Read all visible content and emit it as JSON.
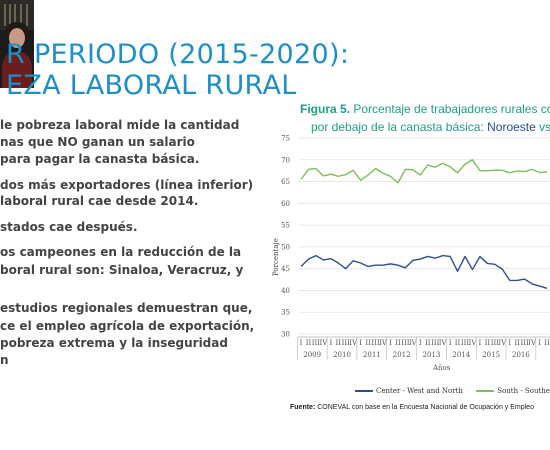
{
  "slide": {
    "title_line1": "R PERIODO (2015-2020):",
    "title_line2": "EZA LABORAL RURAL",
    "bullets": [
      "le pobreza laboral mide la cantidad",
      "nas que NO ganan un salario",
      "para pagar la canasta básica.",
      "dos más exportadores (línea inferior)",
      " laboral rural cae desde 2014.",
      "stados cae después.",
      "os campeones en la reducción de la",
      "boral rural son: Sinaloa, Veracruz, y",
      "estudios regionales demuestran que,",
      "ce el empleo agrícola de exportación,",
      "pobreza extrema y la inseguridad",
      "n"
    ]
  },
  "figure": {
    "title_bold": "Figura 5.",
    "title_rest": " Porcentaje de trabajadores rurales con",
    "subtitle_plain": "por debajo de la canasta básica: ",
    "subtitle_blue": "Noroeste",
    "subtitle_tail": " vs S",
    "source_bold": "Fuente:",
    "source_rest": " CONEVAL con base en la Encuesta Nacional de Ocupación y Empleo"
  },
  "chart_data": {
    "type": "line",
    "ylabel": "Porcentaje",
    "xlabel": "Años",
    "ylim": [
      30,
      75
    ],
    "y_ticks": [
      30,
      35,
      40,
      45,
      50,
      55,
      60,
      65,
      70,
      75
    ],
    "quarter_labels": [
      "I",
      "II",
      "III",
      "IV"
    ],
    "years": [
      "2009",
      "2010",
      "2011",
      "2012",
      "2013",
      "2014",
      "2015",
      "2016"
    ],
    "series": [
      {
        "name": "Center - West and North",
        "color": "#2f4f8f",
        "values": [
          45.5,
          47.2,
          48.0,
          47.0,
          47.3,
          46.3,
          45.0,
          46.8,
          46.3,
          45.5,
          45.8,
          45.8,
          46.1,
          45.8,
          45.2,
          46.9,
          47.2,
          47.8,
          47.4,
          48.0,
          47.8,
          44.4,
          47.8,
          44.8,
          47.8,
          46.2,
          46.0,
          44.9,
          42.3,
          42.3,
          42.6,
          41.5,
          41.0,
          40.5
        ]
      },
      {
        "name": "South - Southeast",
        "color": "#7cbf5a",
        "values": [
          65.5,
          67.8,
          68.0,
          66.3,
          66.7,
          66.2,
          66.6,
          67.6,
          65.3,
          66.5,
          68.0,
          66.9,
          66.2,
          64.7,
          67.8,
          67.7,
          66.5,
          68.8,
          68.3,
          69.2,
          68.4,
          67.0,
          69.0,
          70.0,
          67.5,
          67.5,
          67.6,
          67.6,
          67.0,
          67.4,
          67.3,
          67.8,
          67.1,
          67.2
        ]
      }
    ],
    "legend_position": "bottom"
  },
  "colors": {
    "title": "#1f8fc9",
    "figure_title": "#1f9f86",
    "noroeste": "#1e4f96"
  },
  "icons": {
    "video": "presenter-video-thumbnail"
  }
}
